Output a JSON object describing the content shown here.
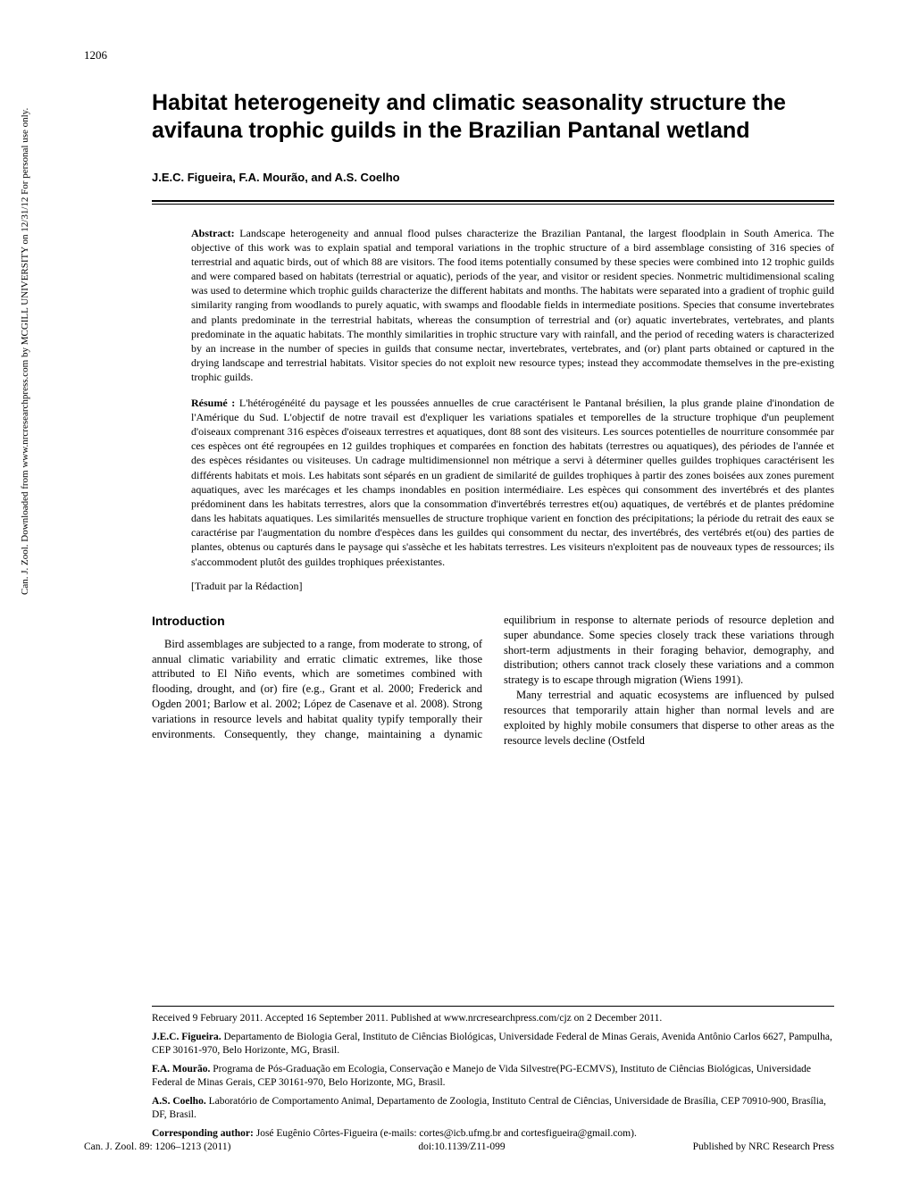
{
  "page_number": "1206",
  "sidebar": "Can. J. Zool. Downloaded from www.nrcresearchpress.com by MCGILL UNIVERSITY on 12/31/12\n                            For personal use only.",
  "title": "Habitat heterogeneity and climatic seasonality structure the avifauna trophic guilds in the Brazilian Pantanal wetland",
  "authors": "J.E.C. Figueira, F.A. Mourão, and A.S. Coelho",
  "abstract_label": "Abstract:",
  "abstract": "Landscape heterogeneity and annual flood pulses characterize the Brazilian Pantanal, the largest floodplain in South America. The objective of this work was to explain spatial and temporal variations in the trophic structure of a bird assemblage consisting of 316 species of terrestrial and aquatic birds, out of which 88 are visitors. The food items potentially consumed by these species were combined into 12 trophic guilds and were compared based on habitats (terrestrial or aquatic), periods of the year, and visitor or resident species. Nonmetric multidimensional scaling was used to determine which trophic guilds characterize the different habitats and months. The habitats were separated into a gradient of trophic guild similarity ranging from woodlands to purely aquatic, with swamps and floodable fields in intermediate positions. Species that consume invertebrates and plants predominate in the terrestrial habitats, whereas the consumption of terrestrial and (or) aquatic invertebrates, vertebrates, and plants predominate in the aquatic habitats. The monthly similarities in trophic structure vary with rainfall, and the period of receding waters is characterized by an increase in the number of species in guilds that consume nectar, invertebrates, vertebrates, and (or) plant parts obtained or captured in the drying landscape and terrestrial habitats. Visitor species do not exploit new resource types; instead they accommodate themselves in the pre-existing trophic guilds.",
  "resume_label": "Résumé :",
  "resume": "L'hétérogénéité du paysage et les poussées annuelles de crue caractérisent le Pantanal brésilien, la plus grande plaine d'inondation de l'Amérique du Sud. L'objectif de notre travail est d'expliquer les variations spatiales et temporelles de la structure trophique d'un peuplement d'oiseaux comprenant 316 espèces d'oiseaux terrestres et aquatiques, dont 88 sont des visiteurs. Les sources potentielles de nourriture consommée par ces espèces ont été regroupées en 12 guildes trophiques et comparées en fonction des habitats (terrestres ou aquatiques), des périodes de l'année et des espèces résidantes ou visiteuses. Un cadrage multidimensionnel non métrique a servi à déterminer quelles guildes trophiques caractérisent les différents habitats et mois. Les habitats sont séparés en un gradient de similarité de guildes trophiques à partir des zones boisées aux zones purement aquatiques, avec les marécages et les champs inondables en position intermédiaire. Les espèces qui consomment des invertébrés et des plantes prédominent dans les habitats terrestres, alors que la consommation d'invertébrés terrestres et(ou) aquatiques, de vertébrés et de plantes prédomine dans les habitats aquatiques. Les similarités mensuelles de structure trophique varient en fonction des précipitations; la période du retrait des eaux se caractérise par l'augmentation du nombre d'espèces dans les guildes qui consomment du nectar, des invertébrés, des vertébrés et(ou) des parties de plantes, obtenus ou capturés dans le paysage qui s'assèche et les habitats terrestres. Les visiteurs n'exploitent pas de nouveaux types de ressources; ils s'accommodent plutôt des guildes trophiques préexistantes.",
  "traduit": "[Traduit par la Rédaction]",
  "intro_heading": "Introduction",
  "intro_p1": "Bird assemblages are subjected to a range, from moderate to strong, of annual climatic variability and erratic climatic extremes, like those attributed to El Niño events, which are sometimes combined with flooding, drought, and (or) fire (e.g., Grant et al. 2000; Frederick and Ogden 2001; Barlow et al. 2002; López de Casenave et al. 2008). Strong variations in resource levels and habitat quality typify temporally their environments. Consequently, they change, maintaining a dynamic equilibrium in response to alternate periods of resource depletion and super abundance. Some species closely track these variations through short-term adjustments in their foraging behavior, demography, and distribution; others cannot track closely these variations and a common strategy is to escape through migration (Wiens 1991).",
  "intro_p2": "Many terrestrial and aquatic ecosystems are influenced by pulsed resources that temporarily attain higher than normal levels and are exploited by highly mobile consumers that disperse to other areas as the resource levels decline (Ostfeld",
  "received": "Received 9 February 2011. Accepted 16 September 2011. Published at www.nrcresearchpress.com/cjz on 2 December 2011.",
  "affil1_name": "J.E.C. Figueira.",
  "affil1": " Departamento de Biologia Geral, Instituto de Ciências Biológicas, Universidade Federal de Minas Gerais, Avenida Antônio Carlos 6627, Pampulha, CEP 30161-970, Belo Horizonte, MG, Brasil.",
  "affil2_name": "F.A. Mourão.",
  "affil2": " Programa de Pós-Graduação em Ecologia, Conservação e Manejo de Vida Silvestre(PG-ECMVS), Instituto de Ciências Biológicas, Universidade Federal de Minas Gerais, CEP 30161-970, Belo Horizonte, MG, Brasil.",
  "affil3_name": "A.S. Coelho.",
  "affil3": " Laboratório de Comportamento Animal, Departamento de Zoologia, Instituto Central de Ciências, Universidade de Brasília, CEP 70910-900, Brasília, DF, Brasil.",
  "corresponding_name": "Corresponding author:",
  "corresponding": " José Eugênio Côrtes-Figueira (e-mails: cortes@icb.ufmg.br and cortesfigueira@gmail.com).",
  "citation": "Can. J. Zool. 89: 1206–1213 (2011)",
  "doi": "doi:10.1139/Z11-099",
  "publisher": "Published by NRC Research Press"
}
